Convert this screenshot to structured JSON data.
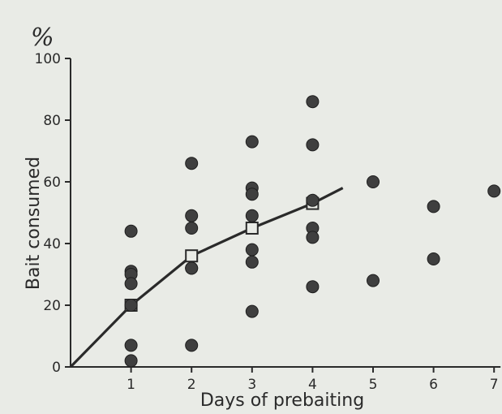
{
  "chart_data": {
    "type": "scatter",
    "title": "",
    "unit_label": "%",
    "xlabel": "Days of prebaiting",
    "ylabel": "Bait consumed",
    "xlim": [
      0,
      7
    ],
    "ylim": [
      0,
      100
    ],
    "x_ticks": [
      1,
      2,
      3,
      4,
      5,
      6,
      7
    ],
    "y_ticks": [
      0,
      20,
      40,
      60,
      80,
      100
    ],
    "grid": false,
    "legend": "none",
    "colors": {
      "ink": "#2a2a2a",
      "point": "#3f3f3f",
      "background": "#e9ebe6"
    },
    "series": [
      {
        "type": "scatter",
        "marker": "filled-circle",
        "points": [
          [
            1,
            44
          ],
          [
            1,
            31
          ],
          [
            1,
            30
          ],
          [
            1,
            27
          ],
          [
            1,
            20
          ],
          [
            1,
            7
          ],
          [
            1,
            2
          ],
          [
            2,
            66
          ],
          [
            2,
            49
          ],
          [
            2,
            45
          ],
          [
            2,
            32
          ],
          [
            2,
            32
          ],
          [
            2,
            7
          ],
          [
            3,
            73
          ],
          [
            3,
            58
          ],
          [
            3,
            56
          ],
          [
            3,
            49
          ],
          [
            3,
            38
          ],
          [
            3,
            34
          ],
          [
            3,
            18
          ],
          [
            4,
            86
          ],
          [
            4,
            72
          ],
          [
            4,
            54
          ],
          [
            4,
            45
          ],
          [
            4,
            42
          ],
          [
            4,
            26
          ],
          [
            5,
            60
          ],
          [
            5,
            28
          ],
          [
            6,
            52
          ],
          [
            6,
            35
          ],
          [
            7,
            57
          ]
        ]
      },
      {
        "type": "line",
        "marker": "open-square",
        "points": [
          [
            0,
            0
          ],
          [
            1,
            20
          ],
          [
            2,
            36
          ],
          [
            3,
            45
          ],
          [
            4,
            53
          ],
          [
            4.5,
            58
          ]
        ],
        "marked_points": [
          [
            1,
            20
          ],
          [
            2,
            36
          ],
          [
            3,
            45
          ],
          [
            4,
            53
          ]
        ]
      }
    ]
  }
}
